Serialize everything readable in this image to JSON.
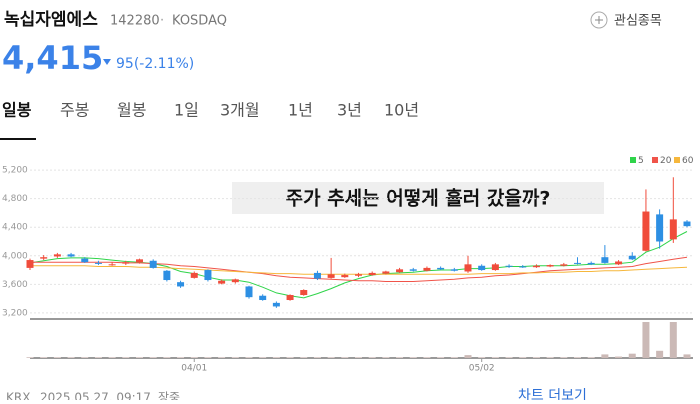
{
  "header": {
    "name": "녹십자엠에스",
    "code": "142280",
    "market": "KOSDAQ",
    "watch": "관심종목",
    "price": "4,415",
    "change": "95(-2.11%)"
  },
  "tabs": [
    "일봉",
    "주봉",
    "월봉",
    "1일",
    "3개월",
    "1년",
    "3년",
    "10년"
  ],
  "chart_data": {
    "type": "candlestick",
    "annotation": "주가 추세는 어떻게 흘러 갔을까?",
    "x": [
      null,
      null,
      null,
      null,
      null,
      null,
      null,
      null,
      null,
      null,
      null,
      null,
      "04/01",
      null,
      null,
      null,
      null,
      null,
      null,
      null,
      null,
      null,
      null,
      null,
      null,
      null,
      null,
      null,
      null,
      null,
      null,
      null,
      null,
      "05/02",
      null,
      null,
      null,
      null,
      null,
      null,
      null,
      null,
      null,
      null,
      null,
      null,
      null,
      null,
      null
    ],
    "open": [
      3830,
      3960,
      3990,
      4020,
      3960,
      3900,
      3880,
      3890,
      3910,
      3930,
      3790,
      3630,
      3690,
      3800,
      3610,
      3630,
      3570,
      3440,
      3340,
      3380,
      3450,
      3760,
      3690,
      3700,
      3720,
      3730,
      3750,
      3770,
      3810,
      3790,
      3830,
      3810,
      3780,
      3860,
      3800,
      3860,
      3850,
      3840,
      3850,
      3860,
      3900,
      3900,
      3980,
      3880,
      4000,
      4070,
      4580,
      4230,
      4480
    ],
    "high": [
      3960,
      4010,
      4040,
      4040,
      3980,
      3930,
      3910,
      3930,
      3960,
      3950,
      3800,
      3650,
      3780,
      3810,
      3670,
      3680,
      3580,
      3460,
      3360,
      3460,
      3530,
      3790,
      3970,
      3750,
      3760,
      3780,
      3790,
      3830,
      3830,
      3850,
      3850,
      3830,
      4000,
      3880,
      3900,
      3880,
      3870,
      3880,
      3880,
      3900,
      3980,
      3920,
      4150,
      3940,
      4050,
      4930,
      4650,
      5100,
      4500
    ],
    "low": [
      3800,
      3940,
      3970,
      3980,
      3900,
      3870,
      3860,
      3870,
      3890,
      3820,
      3640,
      3550,
      3680,
      3640,
      3600,
      3610,
      3400,
      3370,
      3270,
      3370,
      3440,
      3660,
      3680,
      3690,
      3700,
      3720,
      3740,
      3760,
      3780,
      3780,
      3800,
      3780,
      3760,
      3790,
      3790,
      3830,
      3830,
      3830,
      3840,
      3850,
      3880,
      3870,
      3890,
      3870,
      3940,
      4060,
      4100,
      4180,
      4400
    ],
    "close": [
      3940,
      3980,
      4020,
      3990,
      3910,
      3890,
      3880,
      3910,
      3950,
      3830,
      3660,
      3570,
      3760,
      3660,
      3650,
      3670,
      3420,
      3380,
      3290,
      3450,
      3520,
      3680,
      3740,
      3730,
      3740,
      3760,
      3780,
      3810,
      3790,
      3830,
      3810,
      3790,
      3880,
      3800,
      3880,
      3850,
      3840,
      3860,
      3870,
      3880,
      3890,
      3880,
      3900,
      3920,
      3950,
      4620,
      4200,
      4510,
      4415
    ],
    "up_color": "#f04c3b",
    "down_color": "#2d8fe3",
    "ylim": [
      3100,
      5300
    ],
    "yticks": [
      {
        "value": 3200,
        "label": "3,200"
      },
      {
        "value": 3600,
        "label": "3,600"
      },
      {
        "value": 4000,
        "label": "4,000"
      },
      {
        "value": 4400,
        "label": "4,400"
      },
      {
        "value": 4800,
        "label": "4,800"
      },
      {
        "value": 5200,
        "label": "5,200"
      }
    ],
    "grid": true,
    "ma": [
      {
        "name": "5",
        "color": "#2fd44a",
        "values": [
          3900,
          3930,
          3960,
          3970,
          3970,
          3960,
          3940,
          3920,
          3910,
          3890,
          3850,
          3780,
          3750,
          3700,
          3660,
          3660,
          3630,
          3560,
          3480,
          3440,
          3410,
          3470,
          3540,
          3620,
          3680,
          3730,
          3750,
          3760,
          3770,
          3790,
          3800,
          3800,
          3820,
          3820,
          3830,
          3850,
          3850,
          3860,
          3860,
          3860,
          3870,
          3880,
          3880,
          3890,
          3910,
          4050,
          4120,
          4240,
          4340
        ]
      },
      {
        "name": "20",
        "color": "#f0544a",
        "values": [
          3910,
          3910,
          3910,
          3910,
          3910,
          3910,
          3910,
          3900,
          3900,
          3890,
          3880,
          3860,
          3850,
          3830,
          3810,
          3790,
          3770,
          3750,
          3720,
          3700,
          3690,
          3680,
          3670,
          3660,
          3650,
          3650,
          3640,
          3640,
          3640,
          3650,
          3660,
          3670,
          3690,
          3700,
          3720,
          3730,
          3750,
          3770,
          3790,
          3800,
          3810,
          3820,
          3830,
          3840,
          3850,
          3890,
          3920,
          3950,
          3980
        ]
      },
      {
        "name": "60",
        "color": "#f6b73c",
        "values": [
          3860,
          3860,
          3860,
          3860,
          3860,
          3850,
          3850,
          3850,
          3840,
          3840,
          3830,
          3820,
          3810,
          3800,
          3790,
          3780,
          3770,
          3760,
          3750,
          3750,
          3740,
          3740,
          3740,
          3740,
          3740,
          3740,
          3740,
          3740,
          3740,
          3740,
          3740,
          3740,
          3740,
          3750,
          3750,
          3750,
          3760,
          3760,
          3770,
          3770,
          3780,
          3780,
          3790,
          3790,
          3800,
          3810,
          3820,
          3830,
          3840
        ]
      }
    ],
    "volume": [
      2,
      2,
      2,
      2,
      2,
      2,
      2,
      2,
      2,
      2,
      2,
      2,
      2,
      2,
      2,
      2,
      2,
      2,
      2,
      2,
      2,
      2,
      2,
      2,
      2,
      2,
      2,
      2,
      2,
      2,
      2,
      2,
      8,
      2,
      2,
      2,
      2,
      2,
      2,
      2,
      2,
      2,
      10,
      4,
      12,
      100,
      20,
      100,
      10
    ],
    "volume_lim": [
      0,
      100
    ],
    "volume_color": "#cbb9b6"
  },
  "footer": {
    "source": "KRX",
    "time": "2025.05.27. 09:17",
    "status": "장중",
    "more": "차트 더보기"
  }
}
